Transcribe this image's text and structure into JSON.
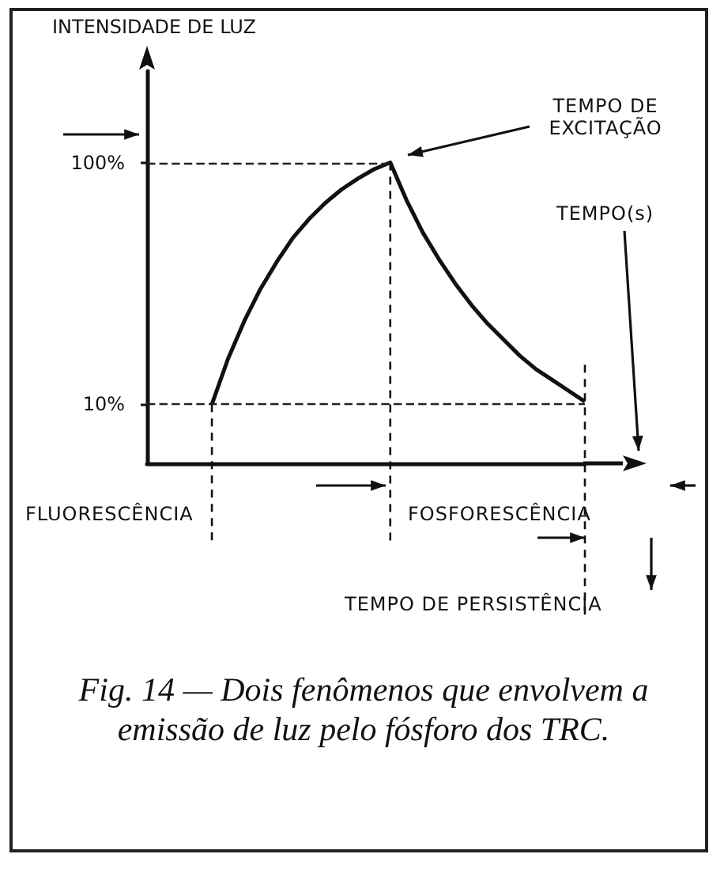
{
  "chart_data": {
    "type": "line",
    "ylabel": "INTENSIDADE DE LUZ",
    "title": "Fig. 14 — Dois fenômenos que envolvem a emissão de luz pelo fósforo dos TRC.",
    "categories": [
      null,
      null,
      null,
      null,
      null,
      null,
      null,
      null,
      null,
      null,
      null,
      null,
      null,
      null,
      null,
      null,
      null,
      null,
      null,
      null,
      null,
      null,
      null,
      null,
      null,
      null,
      null,
      null
    ],
    "series": [
      {
        "color": "#111111",
        "values": [
          null,
          null,
          null,
          null,
          10,
          27,
          41,
          53,
          63,
          72,
          79,
          85,
          90,
          94,
          97.5,
          100,
          86,
          74,
          64,
          55,
          47,
          40,
          34,
          28,
          23,
          19,
          15,
          11
        ]
      }
    ],
    "ylim": [
      -12,
      134
    ],
    "yticks": [
      {
        "value": 10,
        "label": "10%"
      },
      {
        "value": 100,
        "label": "100%"
      }
    ],
    "tick_labels": "y",
    "grid": false,
    "marker": "none",
    "line_style": "solid",
    "ref_lines": [
      {
        "axis": "y",
        "value": 100,
        "line_style": "dashed"
      },
      {
        "axis": "y",
        "value": 10,
        "line_style": "dashed"
      }
    ],
    "annotations": [
      "TEMPO DE EXCITAÇÃO",
      "TEMPO(s)",
      "FLUORESCÊNCIA",
      "FOSFORESCÊNCIA",
      "TEMPO DE PERSISTÊNCIA"
    ]
  }
}
